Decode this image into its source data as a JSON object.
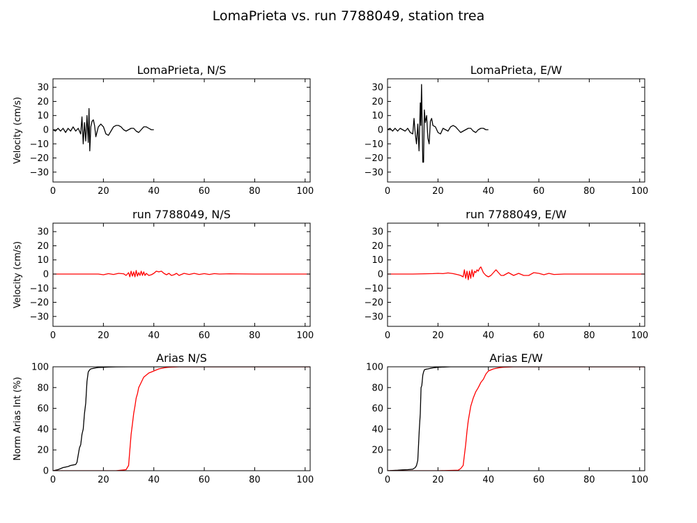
{
  "figure": {
    "title": "LomaPrieta vs. run 7788049, station trea"
  },
  "colors": {
    "recorded": "#000000",
    "simulated": "#ff0000",
    "axes": "#000000",
    "background": "#ffffff"
  },
  "chart_data": [
    {
      "type": "line",
      "title": "LomaPrieta, N/S",
      "xlabel": "",
      "ylabel": "Velocity (cm/s)",
      "xlim": [
        0,
        102
      ],
      "ylim": [
        -37,
        36
      ],
      "xticks": [
        "0",
        "20",
        "40",
        "60",
        "80",
        "100"
      ],
      "yticks": [
        "30",
        "20",
        "10",
        "0",
        "−10",
        "−20",
        "−30"
      ],
      "series": [
        {
          "color": "#000000",
          "x": [
            0,
            1,
            2,
            3,
            4,
            5,
            6,
            7,
            8,
            9,
            10,
            11,
            11.5,
            12,
            12.5,
            13,
            13.5,
            14,
            14.3,
            14.6,
            15,
            15.5,
            16,
            16.5,
            17,
            18,
            19,
            20,
            21,
            22,
            23,
            24,
            25,
            26,
            27,
            28,
            29,
            30,
            31,
            32,
            33,
            34,
            35,
            36,
            37,
            38,
            39,
            40
          ],
          "y": [
            0,
            -1,
            1,
            -1,
            1,
            -2,
            1,
            -1,
            2,
            -1,
            1,
            -3,
            9,
            -10,
            5,
            -8,
            10,
            -9,
            15,
            -15,
            2,
            6,
            7,
            3,
            -5,
            2,
            4,
            2,
            -3,
            -4,
            -1,
            2,
            3,
            3,
            2,
            0,
            -1,
            0,
            1,
            1,
            -1,
            -2,
            0,
            2,
            2,
            1,
            0,
            0
          ]
        }
      ]
    },
    {
      "type": "line",
      "title": "LomaPrieta, E/W",
      "xlabel": "",
      "ylabel": "",
      "xlim": [
        0,
        102
      ],
      "ylim": [
        -37,
        36
      ],
      "xticks": [
        "0",
        "20",
        "40",
        "60",
        "80",
        "100"
      ],
      "yticks": [
        "30",
        "20",
        "10",
        "0",
        "−10",
        "−20",
        "−30"
      ],
      "series": [
        {
          "color": "#000000",
          "x": [
            0,
            1,
            2,
            3,
            4,
            5,
            6,
            7,
            8,
            9,
            10,
            10.5,
            11,
            11.5,
            12,
            12.5,
            13,
            13.2,
            13.5,
            14,
            14.3,
            14.6,
            15,
            15.5,
            16,
            16.5,
            17,
            17.5,
            18,
            19,
            20,
            21,
            22,
            23,
            24,
            25,
            26,
            27,
            28,
            29,
            30,
            31,
            32,
            33,
            34,
            35,
            36,
            37,
            38,
            39,
            40
          ],
          "y": [
            0,
            1,
            -1,
            1,
            -1,
            1,
            0,
            -1,
            1,
            -2,
            -3,
            8,
            -3,
            -10,
            4,
            -15,
            19,
            3,
            32,
            -23,
            -23,
            14,
            5,
            10,
            -6,
            -10,
            6,
            8,
            3,
            2,
            -2,
            -3,
            1,
            0,
            -1,
            2,
            3,
            2,
            0,
            -2,
            -1,
            0,
            1,
            1,
            -1,
            -2,
            0,
            1,
            1,
            0,
            0
          ]
        }
      ]
    },
    {
      "type": "line",
      "title": "run 7788049, N/S",
      "xlabel": "",
      "ylabel": "Velocity (cm/s)",
      "xlim": [
        0,
        102
      ],
      "ylim": [
        -37,
        36
      ],
      "xticks": [
        "0",
        "20",
        "40",
        "60",
        "80",
        "100"
      ],
      "yticks": [
        "30",
        "20",
        "10",
        "0",
        "−10",
        "−20",
        "−30"
      ],
      "series": [
        {
          "color": "#ff0000",
          "x": [
            0,
            10,
            18,
            20,
            22,
            24,
            26,
            28,
            29,
            30,
            30.5,
            31,
            31.5,
            32,
            32.5,
            33,
            33.5,
            34,
            34.5,
            35,
            35.5,
            36,
            36.5,
            37,
            38,
            39,
            40,
            41,
            42,
            43,
            44,
            45,
            46,
            47,
            48,
            49,
            50,
            52,
            54,
            56,
            58,
            60,
            62,
            64,
            66,
            70,
            80,
            90,
            102
          ],
          "y": [
            0,
            0,
            0,
            -0.5,
            0.3,
            -0.3,
            0.5,
            0.2,
            -1,
            1,
            -2,
            2,
            -1.5,
            1.5,
            -2,
            2.5,
            -1.5,
            1,
            -1,
            2,
            -1,
            1.5,
            -1,
            0.5,
            -1,
            -0.5,
            0.5,
            2,
            1.5,
            2,
            0.5,
            -0.5,
            0.5,
            -1,
            -0.5,
            0.5,
            -1,
            0.5,
            -0.3,
            0.5,
            -0.3,
            0.3,
            -0.3,
            0.3,
            0,
            0.2,
            0,
            0,
            0
          ]
        }
      ]
    },
    {
      "type": "line",
      "title": "run 7788049, E/W",
      "xlabel": "",
      "ylabel": "",
      "xlim": [
        0,
        102
      ],
      "ylim": [
        -37,
        36
      ],
      "xticks": [
        "0",
        "20",
        "40",
        "60",
        "80",
        "100"
      ],
      "yticks": [
        "30",
        "20",
        "10",
        "0",
        "−10",
        "−20",
        "−30"
      ],
      "series": [
        {
          "color": "#ff0000",
          "x": [
            0,
            10,
            18,
            20,
            22,
            24,
            26,
            28,
            29,
            30,
            30.5,
            31,
            31.5,
            32,
            32.5,
            33,
            33.5,
            34,
            34.5,
            35,
            35.5,
            36,
            36.5,
            37,
            37.5,
            38,
            39,
            40,
            41,
            42,
            43,
            44,
            45,
            46,
            48,
            50,
            52,
            54,
            56,
            58,
            60,
            62,
            64,
            66,
            70,
            80,
            90,
            102
          ],
          "y": [
            0,
            0,
            0.3,
            0.5,
            0.3,
            0.8,
            0.3,
            -0.5,
            -1,
            -2,
            3,
            -3,
            2,
            -4,
            2,
            -3,
            3,
            -2,
            2,
            1,
            3,
            2,
            4,
            5,
            3,
            1,
            -1,
            -2,
            -1,
            1,
            3,
            1,
            -1,
            -1,
            1,
            -1,
            0.5,
            -1,
            -1,
            1,
            0.5,
            -0.5,
            0.5,
            -0.3,
            0,
            0,
            0,
            0
          ]
        }
      ]
    },
    {
      "type": "line",
      "title": "Arias N/S",
      "xlabel": "",
      "ylabel": "Norm Arias Int (%)",
      "xlim": [
        0,
        102
      ],
      "ylim": [
        0,
        100
      ],
      "xticks": [
        "0",
        "20",
        "40",
        "60",
        "80",
        "100"
      ],
      "yticks": [
        "100",
        "80",
        "60",
        "40",
        "20",
        "0"
      ],
      "series": [
        {
          "color": "#000000",
          "x": [
            0,
            1,
            2,
            3,
            4,
            5,
            6,
            7,
            8,
            9,
            9.5,
            10,
            10.5,
            11,
            11.5,
            12,
            12.5,
            13,
            13.5,
            14,
            14.5,
            15,
            16,
            17,
            18,
            20,
            22,
            25,
            30,
            40,
            102
          ],
          "y": [
            0,
            0.5,
            1,
            2,
            3,
            3.5,
            4,
            5,
            5.5,
            6,
            8,
            15,
            22,
            25,
            35,
            40,
            55,
            65,
            86,
            95,
            97,
            98,
            98.5,
            99,
            99.3,
            99.5,
            99.7,
            99.9,
            100,
            100,
            100
          ]
        },
        {
          "color": "#ff0000",
          "x": [
            0,
            10,
            20,
            25,
            29,
            30,
            30.5,
            31,
            31.5,
            32,
            32.5,
            33,
            33.5,
            34,
            35,
            36,
            37,
            38,
            39,
            40,
            41,
            42,
            43,
            44,
            45,
            46,
            48,
            50,
            55,
            102
          ],
          "y": [
            0,
            0,
            0,
            0,
            1,
            5,
            20,
            35,
            45,
            55,
            62,
            70,
            74,
            80,
            85,
            90,
            92,
            94,
            95,
            96,
            97,
            98,
            98.5,
            99,
            99.3,
            99.6,
            99.8,
            100,
            100,
            100
          ]
        }
      ]
    },
    {
      "type": "line",
      "title": "Arias E/W",
      "xlabel": "",
      "ylabel": "",
      "xlim": [
        0,
        102
      ],
      "ylim": [
        0,
        100
      ],
      "xticks": [
        "0",
        "20",
        "40",
        "60",
        "80",
        "100"
      ],
      "yticks": [
        "100",
        "80",
        "60",
        "40",
        "20",
        "0"
      ],
      "series": [
        {
          "color": "#000000",
          "x": [
            0,
            2,
            4,
            6,
            8,
            10,
            11,
            11.5,
            12,
            12.3,
            12.6,
            13,
            13.3,
            13.6,
            14,
            14.3,
            14.6,
            15,
            16,
            17,
            18,
            20,
            25,
            102
          ],
          "y": [
            0,
            0.3,
            0.5,
            0.8,
            1,
            1.5,
            3,
            5,
            10,
            25,
            40,
            55,
            80,
            82,
            92,
            95,
            97,
            97.5,
            98,
            98.5,
            99,
            99.5,
            100,
            100
          ]
        },
        {
          "color": "#ff0000",
          "x": [
            0,
            10,
            20,
            28,
            29,
            30,
            30.5,
            31,
            31.5,
            32,
            32.5,
            33,
            34,
            35,
            36,
            37,
            38,
            39,
            40,
            41,
            42,
            43,
            44,
            45,
            46,
            48,
            50,
            55,
            102
          ],
          "y": [
            0,
            0,
            0,
            0.5,
            2,
            5,
            15,
            25,
            38,
            48,
            55,
            62,
            70,
            76,
            80,
            85,
            88,
            93,
            96,
            97,
            98,
            98.5,
            99,
            99.3,
            99.6,
            99.8,
            100,
            100,
            100
          ]
        }
      ]
    }
  ]
}
